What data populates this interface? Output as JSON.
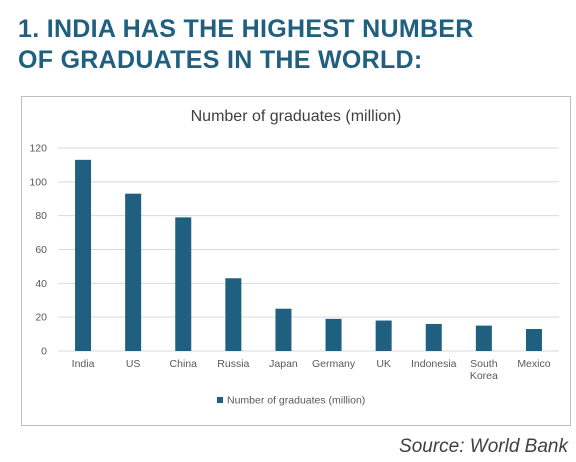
{
  "headline": {
    "line1": "1. INDIA HAS THE HIGHEST NUMBER",
    "line2": "OF GRADUATES IN THE WORLD:"
  },
  "source": "Source: World Bank",
  "colors": {
    "bar": "#1f5f7f",
    "headline": "#1f5f7f",
    "grid": "#d9d9d9"
  },
  "chart_data": {
    "type": "bar",
    "title": "Number of graduates (million)",
    "categories": [
      "India",
      "US",
      "China",
      "Russia",
      "Japan",
      "Germany",
      "UK",
      "Indonesia",
      "South Korea",
      "Mexico"
    ],
    "series": [
      {
        "name": "Number of graduates (million)",
        "values": [
          113,
          93,
          79,
          43,
          25,
          19,
          18,
          16,
          15,
          13
        ]
      }
    ],
    "yticks": [
      0,
      20,
      40,
      60,
      80,
      100,
      120
    ],
    "ylim": [
      0,
      120
    ],
    "grid": true,
    "legend": "bottom"
  }
}
